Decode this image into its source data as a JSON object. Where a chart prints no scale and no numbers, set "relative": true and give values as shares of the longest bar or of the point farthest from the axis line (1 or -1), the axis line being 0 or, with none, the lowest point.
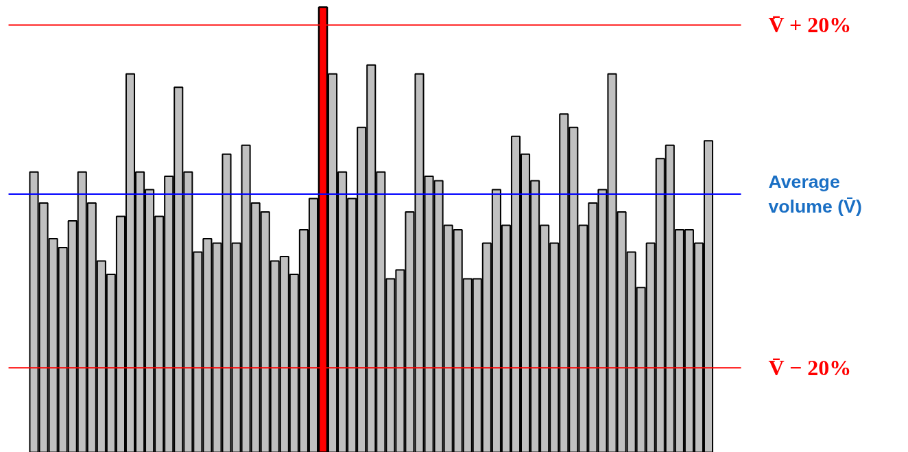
{
  "chart_data": {
    "type": "bar",
    "relative": true,
    "categories": [
      null,
      null,
      null,
      null,
      null,
      null,
      null,
      null,
      null,
      null,
      null,
      null,
      null,
      null,
      null,
      null,
      null,
      null,
      null,
      null,
      null,
      null,
      null,
      null,
      null,
      null,
      null,
      null,
      null,
      null,
      null,
      null,
      null,
      null,
      null,
      null,
      null,
      null,
      null,
      null,
      null,
      null,
      null,
      null,
      null,
      null,
      null,
      null,
      null,
      null,
      null,
      null,
      null,
      null,
      null,
      null,
      null,
      null,
      null,
      null,
      null,
      null,
      null,
      null,
      null,
      null,
      null,
      null,
      null,
      null,
      null
    ],
    "values": [
      0.63,
      0.56,
      0.48,
      0.46,
      0.52,
      0.63,
      0.56,
      0.43,
      0.4,
      0.53,
      0.85,
      0.63,
      0.59,
      0.53,
      0.62,
      0.82,
      0.63,
      0.45,
      0.48,
      0.47,
      0.67,
      0.47,
      0.69,
      0.56,
      0.54,
      0.43,
      0.44,
      0.4,
      0.5,
      0.57,
      1.0,
      0.85,
      0.63,
      0.57,
      0.73,
      0.87,
      0.63,
      0.39,
      0.41,
      0.54,
      0.85,
      0.62,
      0.61,
      0.51,
      0.5,
      0.39,
      0.39,
      0.47,
      0.59,
      0.51,
      0.71,
      0.67,
      0.61,
      0.51,
      0.47,
      0.76,
      0.73,
      0.51,
      0.56,
      0.59,
      0.85,
      0.54,
      0.45,
      0.37,
      0.47,
      0.66,
      0.69,
      0.5,
      0.5,
      0.47,
      0.7
    ],
    "colors": [
      "#c0c0c0",
      "#c0c0c0",
      "#c0c0c0",
      "#c0c0c0",
      "#c0c0c0",
      "#c0c0c0",
      "#c0c0c0",
      "#c0c0c0",
      "#c0c0c0",
      "#c0c0c0",
      "#c0c0c0",
      "#c0c0c0",
      "#c0c0c0",
      "#c0c0c0",
      "#c0c0c0",
      "#c0c0c0",
      "#c0c0c0",
      "#c0c0c0",
      "#c0c0c0",
      "#c0c0c0",
      "#c0c0c0",
      "#c0c0c0",
      "#c0c0c0",
      "#c0c0c0",
      "#c0c0c0",
      "#c0c0c0",
      "#c0c0c0",
      "#c0c0c0",
      "#c0c0c0",
      "#c0c0c0",
      "#ff0000",
      "#c0c0c0",
      "#c0c0c0",
      "#c0c0c0",
      "#c0c0c0",
      "#c0c0c0",
      "#c0c0c0",
      "#c0c0c0",
      "#c0c0c0",
      "#c0c0c0",
      "#c0c0c0",
      "#c0c0c0",
      "#c0c0c0",
      "#c0c0c0",
      "#c0c0c0",
      "#c0c0c0",
      "#c0c0c0",
      "#c0c0c0",
      "#c0c0c0",
      "#c0c0c0",
      "#c0c0c0",
      "#c0c0c0",
      "#c0c0c0",
      "#c0c0c0",
      "#c0c0c0",
      "#c0c0c0",
      "#c0c0c0",
      "#c0c0c0",
      "#c0c0c0",
      "#c0c0c0",
      "#c0c0c0",
      "#c0c0c0",
      "#c0c0c0",
      "#c0c0c0",
      "#c0c0c0",
      "#c0c0c0",
      "#c0c0c0",
      "#c0c0c0",
      "#c0c0c0",
      "#c0c0c0",
      "#c0c0c0"
    ],
    "ref_lines": [
      {
        "axis": "y",
        "value": 0.96,
        "label": "V̄ + 20%",
        "color": "#ff0000"
      },
      {
        "axis": "y",
        "value": 0.58,
        "label": "Average volume (V̄)",
        "color": "#0000ff"
      },
      {
        "axis": "y",
        "value": 0.19,
        "label": "V̄ − 20%",
        "color": "#ff0000"
      }
    ],
    "grid": false
  }
}
